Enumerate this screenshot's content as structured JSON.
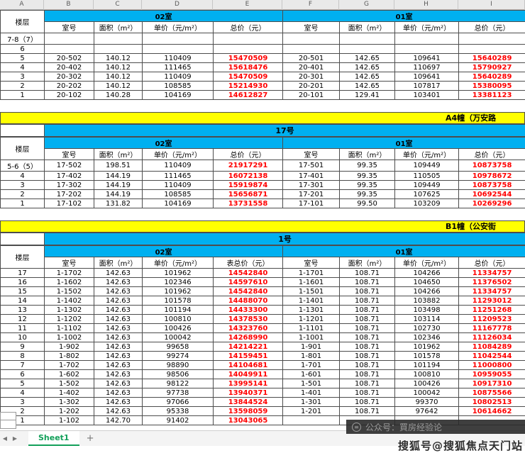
{
  "colors": {
    "header_cyan": "#00b0f0",
    "banner_yellow": "#ffff00",
    "price_red": "#ff0000",
    "tab_green": "#13a05a"
  },
  "spreadsheet": {
    "column_letters": [
      "A",
      "B",
      "C",
      "D",
      "E",
      "F",
      "G",
      "H",
      "I"
    ]
  },
  "blocks": [
    {
      "type": "table",
      "floor_label": "楼层",
      "room_groups": [
        "02室",
        "01室"
      ],
      "col_headers": [
        "室号",
        "面积（m²）",
        "单价（元/m²）",
        "总价（元）",
        "室号",
        "面积（m²）",
        "单价（元/m²）",
        "总价（元）"
      ],
      "rows": [
        [
          "7-8（7）",
          "",
          "",
          "",
          "",
          "",
          "",
          "",
          ""
        ],
        [
          "6",
          "",
          "",
          "",
          "",
          "",
          "",
          "",
          ""
        ],
        [
          "5",
          "20-502",
          "140.12",
          "110409",
          "15470509",
          "20-501",
          "142.65",
          "109641",
          "15640289"
        ],
        [
          "4",
          "20-402",
          "140.12",
          "111465",
          "15618476",
          "20-401",
          "142.65",
          "110697",
          "15790927"
        ],
        [
          "3",
          "20-302",
          "140.12",
          "110409",
          "15470509",
          "20-301",
          "142.65",
          "109641",
          "15640289"
        ],
        [
          "2",
          "20-202",
          "140.12",
          "108585",
          "15214930",
          "20-201",
          "142.65",
          "107817",
          "15380095"
        ],
        [
          "1",
          "20-102",
          "140.28",
          "104169",
          "14612827",
          "20-101",
          "129.41",
          "103401",
          "13381123"
        ]
      ]
    },
    {
      "type": "banner",
      "text": "A4幢（万安路"
    },
    {
      "type": "title",
      "text": "17号"
    },
    {
      "type": "table",
      "floor_label": "楼层",
      "room_groups": [
        "02室",
        "01室"
      ],
      "col_headers": [
        "室号",
        "面积（m²）",
        "单价（元/m²）",
        "总价（元）",
        "室号",
        "面积（m²）",
        "单价（元/m²）",
        "总价（元）"
      ],
      "rows": [
        [
          "5-6（5）",
          "17-502",
          "198.51",
          "110409",
          "21917291",
          "17-501",
          "99.35",
          "109449",
          "10873758"
        ],
        [
          "4",
          "17-402",
          "144.19",
          "111465",
          "16072138",
          "17-401",
          "99.35",
          "110505",
          "10978672"
        ],
        [
          "3",
          "17-302",
          "144.19",
          "110409",
          "15919874",
          "17-301",
          "99.35",
          "109449",
          "10873758"
        ],
        [
          "2",
          "17-202",
          "144.19",
          "108585",
          "15656871",
          "17-201",
          "99.35",
          "107625",
          "10692544"
        ],
        [
          "1",
          "17-102",
          "131.82",
          "104169",
          "13731558",
          "17-101",
          "99.50",
          "103209",
          "10269296"
        ]
      ]
    },
    {
      "type": "banner",
      "text": "B1幢（公安街"
    },
    {
      "type": "title",
      "text": "1号"
    },
    {
      "type": "table",
      "floor_label": "楼层",
      "room_groups": [
        "02室",
        "01室"
      ],
      "col_headers": [
        "室号",
        "面积（m²）",
        "单价（元/m²）",
        "表总价（元）",
        "室号",
        "面积（m²）",
        "单价（元/m²）",
        "总价（元）"
      ],
      "rows": [
        [
          "17",
          "1-1702",
          "142.63",
          "101962",
          "14542840",
          "1-1701",
          "108.71",
          "104266",
          "11334757"
        ],
        [
          "16",
          "1-1602",
          "142.63",
          "102346",
          "14597610",
          "1-1601",
          "108.71",
          "104650",
          "11376502"
        ],
        [
          "15",
          "1-1502",
          "142.63",
          "101962",
          "14542840",
          "1-1501",
          "108.71",
          "104266",
          "11334757"
        ],
        [
          "14",
          "1-1402",
          "142.63",
          "101578",
          "14488070",
          "1-1401",
          "108.71",
          "103882",
          "11293012"
        ],
        [
          "13",
          "1-1302",
          "142.63",
          "101194",
          "14433300",
          "1-1301",
          "108.71",
          "103498",
          "11251268"
        ],
        [
          "12",
          "1-1202",
          "142.63",
          "100810",
          "14378530",
          "1-1201",
          "108.71",
          "103114",
          "11209523"
        ],
        [
          "11",
          "1-1102",
          "142.63",
          "100426",
          "14323760",
          "1-1101",
          "108.71",
          "102730",
          "11167778"
        ],
        [
          "10",
          "1-1002",
          "142.63",
          "100042",
          "14268990",
          "1-1001",
          "108.71",
          "102346",
          "11126034"
        ],
        [
          "9",
          "1-902",
          "142.63",
          "99658",
          "14214221",
          "1-901",
          "108.71",
          "101962",
          "11084289"
        ],
        [
          "8",
          "1-802",
          "142.63",
          "99274",
          "14159451",
          "1-801",
          "108.71",
          "101578",
          "11042544"
        ],
        [
          "7",
          "1-702",
          "142.63",
          "98890",
          "14104681",
          "1-701",
          "108.71",
          "101194",
          "11000800"
        ],
        [
          "6",
          "1-602",
          "142.63",
          "98506",
          "14049911",
          "1-601",
          "108.71",
          "100810",
          "10959055"
        ],
        [
          "5",
          "1-502",
          "142.63",
          "98122",
          "13995141",
          "1-501",
          "108.71",
          "100426",
          "10917310"
        ],
        [
          "4",
          "1-402",
          "142.63",
          "97738",
          "13940371",
          "1-401",
          "108.71",
          "100042",
          "10875566"
        ],
        [
          "3",
          "1-302",
          "142.63",
          "97066",
          "13844524",
          "1-301",
          "108.71",
          "99370",
          "10802513"
        ],
        [
          "2",
          "1-202",
          "142.63",
          "95338",
          "13598059",
          "1-201",
          "108.71",
          "97642",
          "10614662"
        ],
        [
          "1",
          "1-102",
          "142.70",
          "91402",
          "13043065",
          "",
          "",
          "",
          ""
        ]
      ]
    }
  ],
  "bottom": {
    "nav_prev": "◀",
    "nav_next": "▶",
    "sheet_tab": "Sheet1",
    "add_tab": "+"
  },
  "watermark": {
    "band": "公众号：買房经验论",
    "corner": "搜狐号@搜狐焦点天门站"
  }
}
